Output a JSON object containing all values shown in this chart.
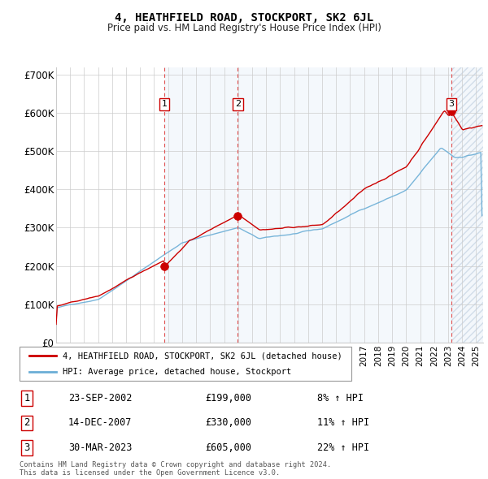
{
  "title": "4, HEATHFIELD ROAD, STOCKPORT, SK2 6JL",
  "subtitle": "Price paid vs. HM Land Registry's House Price Index (HPI)",
  "ylim": [
    0,
    720000
  ],
  "yticks": [
    0,
    100000,
    200000,
    300000,
    400000,
    500000,
    600000,
    700000
  ],
  "ytick_labels": [
    "£0",
    "£100K",
    "£200K",
    "£300K",
    "£400K",
    "£500K",
    "£600K",
    "£700K"
  ],
  "purchases": [
    {
      "date_num": 2002.73,
      "price": 199000,
      "label": "1"
    },
    {
      "date_num": 2007.97,
      "price": 330000,
      "label": "2"
    },
    {
      "date_num": 2023.24,
      "price": 605000,
      "label": "3"
    }
  ],
  "purchase_labels": [
    {
      "label": "1",
      "date": "23-SEP-2002",
      "price": "£199,000",
      "hpi": "8% ↑ HPI"
    },
    {
      "label": "2",
      "date": "14-DEC-2007",
      "price": "£330,000",
      "hpi": "11% ↑ HPI"
    },
    {
      "label": "3",
      "date": "30-MAR-2023",
      "price": "£605,000",
      "hpi": "22% ↑ HPI"
    }
  ],
  "legend_line1": "4, HEATHFIELD ROAD, STOCKPORT, SK2 6JL (detached house)",
  "legend_line2": "HPI: Average price, detached house, Stockport",
  "footer": "Contains HM Land Registry data © Crown copyright and database right 2024.\nThis data is licensed under the Open Government Licence v3.0.",
  "hpi_color": "#6baed6",
  "price_color": "#cc0000",
  "vline_color": "#e05050",
  "shade_color": "#ddeeff",
  "xmin": 1995.0,
  "xmax": 2025.5
}
